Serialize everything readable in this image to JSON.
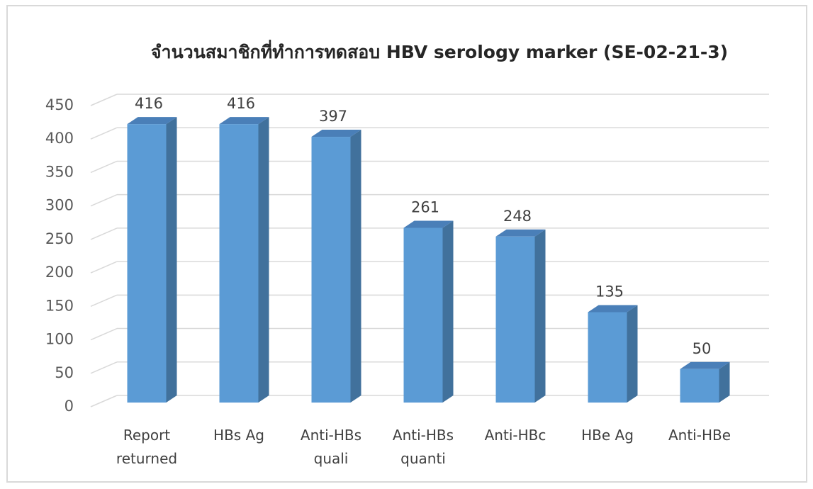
{
  "chart_data": {
    "type": "bar3d",
    "title": "จำนวนสมาชิกที่ทำการทดสอบ HBV serology marker (SE-02-21-3)",
    "categories": [
      "Report returned",
      "HBs Ag",
      "Anti-HBs quali",
      "Anti-HBs quanti",
      "Anti-HBc",
      "HBe Ag",
      "Anti-HBe"
    ],
    "values": [
      416,
      416,
      397,
      261,
      248,
      135,
      50
    ],
    "color": "#5b9bd5",
    "ylim": [
      0,
      450
    ],
    "yticks": [
      0,
      50,
      100,
      150,
      200,
      250,
      300,
      350,
      400,
      450
    ],
    "grid": true
  }
}
